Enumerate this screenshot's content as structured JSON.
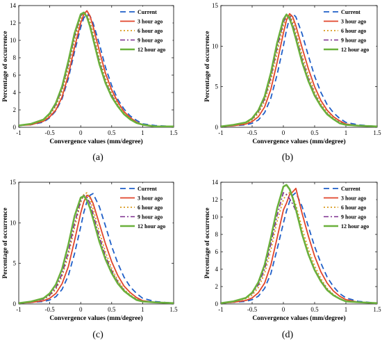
{
  "chart_data": [
    {
      "type": "line",
      "panel_label": "(a)",
      "xlabel": "Convergence values (mm/degree)",
      "ylabel": "Percentage of occurrence",
      "xlim": [
        -1,
        1.5
      ],
      "ylim": [
        0,
        14
      ],
      "xticks": [
        "-1",
        "-0.5",
        "0",
        "0.5",
        "1",
        "1.5"
      ],
      "yticks": [
        "0",
        "2",
        "4",
        "6",
        "8",
        "10",
        "12",
        "14"
      ],
      "legend_position": "top-right",
      "grid": false,
      "x": [
        -1.0,
        -0.8,
        -0.6,
        -0.5,
        -0.4,
        -0.3,
        -0.2,
        -0.1,
        0.0,
        0.05,
        0.1,
        0.15,
        0.2,
        0.3,
        0.4,
        0.5,
        0.6,
        0.7,
        0.8,
        0.9,
        1.0,
        1.2,
        1.5
      ],
      "series": [
        {
          "name": "Current",
          "color": "#1f5fc8",
          "dash": "8,5",
          "width": 1.8,
          "values": [
            0.2,
            0.3,
            0.6,
            1.1,
            1.9,
            3.3,
            5.6,
            8.7,
            11.5,
            12.6,
            13.0,
            12.8,
            12.0,
            9.6,
            6.9,
            4.8,
            3.2,
            2.1,
            1.3,
            0.8,
            0.4,
            0.2,
            0.1
          ]
        },
        {
          "name": "3 hour ago",
          "color": "#e0442a",
          "dash": "",
          "width": 1.8,
          "values": [
            0.2,
            0.3,
            0.7,
            1.2,
            2.0,
            3.5,
            6.0,
            9.2,
            12.0,
            13.0,
            13.4,
            12.8,
            11.6,
            8.8,
            6.2,
            4.3,
            2.9,
            1.8,
            1.1,
            0.6,
            0.3,
            0.1,
            0.1
          ]
        },
        {
          "name": "6 hour ago",
          "color": "#d99a1c",
          "dash": "2,3",
          "width": 1.8,
          "values": [
            0.2,
            0.4,
            0.8,
            1.4,
            2.4,
            4.1,
            6.8,
            10.0,
            12.5,
            13.1,
            13.0,
            12.2,
            10.9,
            8.0,
            5.6,
            3.9,
            2.6,
            1.6,
            1.0,
            0.5,
            0.3,
            0.1,
            0.1
          ]
        },
        {
          "name": "9 hour ago",
          "color": "#7b2d8e",
          "dash": "7,3,2,3",
          "width": 1.6,
          "values": [
            0.2,
            0.4,
            0.9,
            1.5,
            2.6,
            4.4,
            7.2,
            10.4,
            12.8,
            13.2,
            12.8,
            11.8,
            10.5,
            7.6,
            5.3,
            3.7,
            2.5,
            1.5,
            0.9,
            0.5,
            0.3,
            0.1,
            0.1
          ]
        },
        {
          "name": "12 hour ago",
          "color": "#6ab03c",
          "dash": "",
          "width": 2.6,
          "values": [
            0.2,
            0.4,
            0.9,
            1.6,
            2.8,
            4.7,
            7.6,
            10.8,
            13.0,
            13.2,
            12.7,
            11.6,
            10.2,
            7.3,
            5.1,
            3.5,
            2.4,
            1.5,
            0.9,
            0.5,
            0.3,
            0.1,
            0.1
          ]
        }
      ]
    },
    {
      "type": "line",
      "panel_label": "(b)",
      "xlabel": "Convergence values (mm/degree)",
      "ylabel": "Percentage of occurrence",
      "xlim": [
        -1,
        1.5
      ],
      "ylim": [
        0,
        15
      ],
      "xticks": [
        "-1",
        "-0.5",
        "0",
        "0.5",
        "1",
        "1.5"
      ],
      "yticks": [
        "0",
        "5",
        "10",
        "15"
      ],
      "legend_position": "top-right",
      "grid": false,
      "x": [
        -1.0,
        -0.8,
        -0.6,
        -0.5,
        -0.4,
        -0.3,
        -0.2,
        -0.1,
        0.0,
        0.05,
        0.1,
        0.15,
        0.2,
        0.3,
        0.4,
        0.5,
        0.6,
        0.7,
        0.8,
        0.9,
        1.0,
        1.2,
        1.5
      ],
      "series": [
        {
          "name": "Current",
          "color": "#1f5fc8",
          "dash": "8,5",
          "width": 1.8,
          "values": [
            0.1,
            0.2,
            0.3,
            0.5,
            0.9,
            1.8,
            3.6,
            6.5,
            10.0,
            12.0,
            13.5,
            14.0,
            13.6,
            11.5,
            8.8,
            6.3,
            4.3,
            2.8,
            1.8,
            1.1,
            0.6,
            0.3,
            0.1
          ]
        },
        {
          "name": "3 hour ago",
          "color": "#e0442a",
          "dash": "",
          "width": 1.8,
          "values": [
            0.1,
            0.2,
            0.4,
            0.7,
            1.3,
            2.5,
            4.7,
            8.0,
            11.6,
            13.2,
            14.0,
            13.6,
            12.5,
            9.8,
            7.2,
            5.0,
            3.3,
            2.1,
            1.3,
            0.8,
            0.4,
            0.2,
            0.1
          ]
        },
        {
          "name": "6 hour ago",
          "color": "#d99a1c",
          "dash": "2,3",
          "width": 1.8,
          "values": [
            0.1,
            0.3,
            0.5,
            0.9,
            1.7,
            3.2,
            5.8,
            9.2,
            12.5,
            13.6,
            13.8,
            13.1,
            11.8,
            8.9,
            6.4,
            4.4,
            2.9,
            1.8,
            1.1,
            0.6,
            0.3,
            0.2,
            0.1
          ]
        },
        {
          "name": "9 hour ago",
          "color": "#7b2d8e",
          "dash": "7,3,2,3",
          "width": 1.6,
          "values": [
            0.1,
            0.3,
            0.6,
            1.0,
            1.9,
            3.5,
            6.2,
            9.8,
            12.9,
            13.8,
            13.6,
            12.7,
            11.3,
            8.4,
            6.0,
            4.1,
            2.7,
            1.7,
            1.0,
            0.6,
            0.3,
            0.2,
            0.1
          ]
        },
        {
          "name": "12 hour ago",
          "color": "#6ab03c",
          "dash": "",
          "width": 2.6,
          "values": [
            0.1,
            0.3,
            0.6,
            1.1,
            2.1,
            3.8,
            6.7,
            10.4,
            13.3,
            13.9,
            13.4,
            12.3,
            10.9,
            8.0,
            5.7,
            3.9,
            2.6,
            1.6,
            1.0,
            0.5,
            0.3,
            0.2,
            0.1
          ]
        }
      ]
    },
    {
      "type": "line",
      "panel_label": "(c)",
      "xlabel": "Convergence values (mm/degree)",
      "ylabel": "Percentage of occurrence",
      "xlim": [
        -1,
        1.5
      ],
      "ylim": [
        0,
        15
      ],
      "xticks": [
        "-1",
        "-0.5",
        "0",
        "0.5",
        "1",
        "1.5"
      ],
      "yticks": [
        "0",
        "5",
        "10",
        "15"
      ],
      "legend_position": "top-right",
      "grid": false,
      "x": [
        -1.0,
        -0.8,
        -0.6,
        -0.5,
        -0.4,
        -0.3,
        -0.2,
        -0.1,
        0.0,
        0.05,
        0.1,
        0.15,
        0.2,
        0.3,
        0.4,
        0.5,
        0.6,
        0.7,
        0.8,
        0.9,
        1.0,
        1.2,
        1.5
      ],
      "series": [
        {
          "name": "Current",
          "color": "#1f5fc8",
          "dash": "8,5",
          "width": 1.8,
          "values": [
            0.1,
            0.2,
            0.3,
            0.5,
            0.9,
            1.8,
            3.5,
            6.2,
            9.5,
            11.3,
            12.6,
            13.4,
            13.6,
            12.0,
            9.6,
            7.1,
            5.0,
            3.3,
            2.1,
            1.3,
            0.7,
            0.3,
            0.1
          ]
        },
        {
          "name": "3 hour ago",
          "color": "#e0442a",
          "dash": "",
          "width": 1.8,
          "values": [
            0.1,
            0.2,
            0.4,
            0.7,
            1.3,
            2.5,
            4.6,
            7.8,
            11.2,
            12.6,
            13.4,
            13.2,
            12.4,
            9.9,
            7.4,
            5.2,
            3.5,
            2.2,
            1.4,
            0.8,
            0.4,
            0.2,
            0.1
          ]
        },
        {
          "name": "6 hour ago",
          "color": "#d99a1c",
          "dash": "2,3",
          "width": 1.8,
          "values": [
            0.1,
            0.3,
            0.6,
            1.0,
            1.8,
            3.4,
            6.0,
            9.4,
            12.5,
            13.5,
            13.7,
            13.0,
            11.7,
            8.9,
            6.4,
            4.4,
            2.9,
            1.8,
            1.1,
            0.6,
            0.3,
            0.2,
            0.1
          ]
        },
        {
          "name": "9 hour ago",
          "color": "#7b2d8e",
          "dash": "7,3,2,3",
          "width": 1.6,
          "values": [
            0.1,
            0.3,
            0.6,
            1.1,
            2.0,
            3.7,
            6.4,
            9.9,
            12.7,
            13.4,
            13.2,
            12.4,
            11.1,
            8.3,
            5.9,
            4.1,
            2.7,
            1.7,
            1.0,
            0.6,
            0.3,
            0.2,
            0.1
          ]
        },
        {
          "name": "12 hour ago",
          "color": "#6ab03c",
          "dash": "",
          "width": 2.6,
          "values": [
            0.1,
            0.3,
            0.7,
            1.3,
            2.4,
            4.3,
            7.3,
            10.8,
            13.1,
            13.3,
            12.8,
            11.8,
            10.5,
            7.7,
            5.5,
            3.8,
            2.5,
            1.6,
            1.0,
            0.5,
            0.3,
            0.2,
            0.1
          ]
        }
      ]
    },
    {
      "type": "line",
      "panel_label": "(d)",
      "xlabel": "Convergence values (mm/degree)",
      "ylabel": "Percentage of occurrence",
      "xlim": [
        -1,
        1.5
      ],
      "ylim": [
        0,
        14
      ],
      "xticks": [
        "-1",
        "-0.5",
        "0",
        "0.5",
        "1",
        "1.5"
      ],
      "yticks": [
        "0",
        "2",
        "4",
        "6",
        "8",
        "10",
        "12",
        "14"
      ],
      "legend_position": "top-right",
      "grid": false,
      "x": [
        -1.0,
        -0.8,
        -0.6,
        -0.5,
        -0.4,
        -0.3,
        -0.2,
        -0.1,
        0.0,
        0.05,
        0.1,
        0.15,
        0.2,
        0.3,
        0.4,
        0.5,
        0.6,
        0.7,
        0.8,
        0.9,
        1.0,
        1.2,
        1.5
      ],
      "series": [
        {
          "name": "Current",
          "color": "#1f5fc8",
          "dash": "8,5",
          "width": 1.8,
          "values": [
            0.1,
            0.2,
            0.3,
            0.5,
            0.9,
            1.8,
            3.5,
            6.3,
            9.3,
            10.7,
            11.8,
            12.5,
            12.8,
            11.2,
            8.9,
            6.6,
            4.7,
            3.1,
            2.0,
            1.2,
            0.7,
            0.3,
            0.1
          ]
        },
        {
          "name": "3 hour ago",
          "color": "#e0442a",
          "dash": "",
          "width": 1.8,
          "values": [
            0.1,
            0.2,
            0.4,
            0.7,
            1.3,
            2.4,
            4.5,
            7.6,
            10.8,
            11.6,
            12.6,
            12.9,
            13.3,
            10.4,
            7.8,
            5.5,
            3.7,
            2.4,
            1.5,
            0.9,
            0.5,
            0.2,
            0.1
          ]
        },
        {
          "name": "6 hour ago",
          "color": "#d99a1c",
          "dash": "2,3",
          "width": 1.8,
          "values": [
            0.1,
            0.3,
            0.6,
            1.0,
            1.9,
            3.5,
            6.2,
            9.5,
            12.0,
            12.6,
            12.8,
            12.3,
            11.4,
            8.7,
            6.3,
            4.4,
            2.9,
            1.8,
            1.1,
            0.6,
            0.3,
            0.2,
            0.1
          ]
        },
        {
          "name": "9 hour ago",
          "color": "#7b2d8e",
          "dash": "7,3,2,3",
          "width": 1.6,
          "values": [
            0.1,
            0.3,
            0.7,
            1.2,
            2.2,
            4.0,
            6.9,
            10.2,
            12.8,
            12.6,
            12.1,
            11.5,
            10.7,
            8.0,
            5.8,
            4.0,
            2.7,
            1.7,
            1.0,
            0.6,
            0.3,
            0.2,
            0.1
          ]
        },
        {
          "name": "12 hour ago",
          "color": "#6ab03c",
          "dash": "",
          "width": 2.6,
          "values": [
            0.1,
            0.3,
            0.7,
            1.3,
            2.5,
            4.5,
            7.6,
            11.0,
            13.5,
            13.7,
            13.2,
            12.2,
            10.9,
            8.0,
            5.7,
            3.9,
            2.6,
            1.6,
            1.0,
            0.6,
            0.3,
            0.2,
            0.1
          ]
        }
      ]
    }
  ]
}
